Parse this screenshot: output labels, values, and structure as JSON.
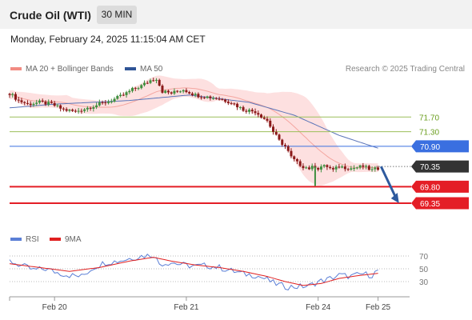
{
  "header": {
    "title": "Crude Oil (WTI)",
    "timeframe": "30 MIN"
  },
  "timestamp": "Monday, February 24, 2025 11:15:04 AM CET",
  "legend_main": [
    {
      "label": "MA 20 + Bollinger Bands",
      "color": "#f28b82"
    },
    {
      "label": "MA 50",
      "color": "#2f5496"
    }
  ],
  "legend_rsi": [
    {
      "label": "RSI",
      "color": "#5b7fd6"
    },
    {
      "label": "9MA",
      "color": "#e02020"
    }
  ],
  "copyright": "Research © 2025 Trading Central",
  "colors": {
    "up": "#3f8f3f",
    "down": "#8b1a1a",
    "resistance": "#9bbf5a",
    "pivot": "#3a6fe0",
    "support": "#e41e26",
    "current": "#333333",
    "arrow": "#2e5a9e"
  },
  "chart_data": [
    {
      "type": "line",
      "series_type": "candlestick",
      "ylim": [
        69.0,
        72.6
      ],
      "xlim": [
        0,
        133
      ],
      "x_ticks": [
        {
          "x": 15,
          "label": "Feb 20"
        },
        {
          "x": 59,
          "label": "Feb 21"
        },
        {
          "x": 103,
          "label": "Feb 24"
        },
        {
          "x": 123,
          "label": "Feb 25"
        }
      ],
      "levels": [
        {
          "value": 71.7,
          "label": "71.70",
          "kind": "resistance"
        },
        {
          "value": 71.3,
          "label": "71.30",
          "kind": "resistance"
        },
        {
          "value": 70.9,
          "label": "70.90",
          "kind": "pivot"
        },
        {
          "value": 70.35,
          "label": "70.35",
          "kind": "current"
        },
        {
          "value": 69.8,
          "label": "69.80",
          "kind": "support"
        },
        {
          "value": 69.35,
          "label": "69.35",
          "kind": "support"
        }
      ],
      "close_anchors": [
        [
          0,
          72.35
        ],
        [
          3,
          72.15
        ],
        [
          6,
          72.05
        ],
        [
          10,
          72.1
        ],
        [
          14,
          72.05
        ],
        [
          18,
          71.9
        ],
        [
          22,
          71.85
        ],
        [
          26,
          71.95
        ],
        [
          30,
          72.05
        ],
        [
          34,
          72.15
        ],
        [
          38,
          72.3
        ],
        [
          41,
          72.45
        ],
        [
          44,
          72.55
        ],
        [
          47,
          72.7
        ],
        [
          49,
          72.75
        ],
        [
          51,
          72.4
        ],
        [
          54,
          72.35
        ],
        [
          58,
          72.45
        ],
        [
          62,
          72.3
        ],
        [
          66,
          72.25
        ],
        [
          70,
          72.2
        ],
        [
          74,
          72.1
        ],
        [
          78,
          71.9
        ],
        [
          82,
          71.85
        ],
        [
          86,
          71.6
        ],
        [
          88,
          71.3
        ],
        [
          90,
          71.05
        ],
        [
          92,
          70.9
        ],
        [
          94,
          70.6
        ],
        [
          96,
          70.45
        ],
        [
          98,
          70.35
        ],
        [
          100,
          70.3
        ],
        [
          102,
          70.35
        ],
        [
          103,
          70.3
        ],
        [
          104,
          70.35
        ],
        [
          106,
          70.35
        ],
        [
          108,
          70.25
        ],
        [
          110,
          70.35
        ],
        [
          114,
          70.3
        ],
        [
          118,
          70.35
        ],
        [
          121,
          70.25
        ],
        [
          123,
          70.3
        ]
      ],
      "ma50_anchors": [
        [
          0,
          71.95
        ],
        [
          15,
          72.05
        ],
        [
          40,
          72.15
        ],
        [
          60,
          72.3
        ],
        [
          80,
          72.1
        ],
        [
          95,
          71.75
        ],
        [
          110,
          71.2
        ],
        [
          123,
          70.85
        ]
      ],
      "forecast": {
        "from": [
          124,
          70.35
        ],
        "to": [
          130,
          69.35
        ]
      }
    },
    {
      "type": "line",
      "title": "RSI",
      "ylim": [
        10,
        80
      ],
      "y_ticks": [
        70,
        50,
        30
      ],
      "rsi_anchors": [
        [
          0,
          62
        ],
        [
          4,
          55
        ],
        [
          8,
          48
        ],
        [
          12,
          50
        ],
        [
          16,
          44
        ],
        [
          20,
          40
        ],
        [
          24,
          38
        ],
        [
          28,
          52
        ],
        [
          32,
          60
        ],
        [
          36,
          62
        ],
        [
          40,
          66
        ],
        [
          44,
          70
        ],
        [
          48,
          72
        ],
        [
          50,
          58
        ],
        [
          54,
          60
        ],
        [
          58,
          56
        ],
        [
          62,
          54
        ],
        [
          66,
          55
        ],
        [
          70,
          52
        ],
        [
          74,
          47
        ],
        [
          78,
          42
        ],
        [
          82,
          40
        ],
        [
          86,
          33
        ],
        [
          88,
          28
        ],
        [
          92,
          22
        ],
        [
          96,
          22
        ],
        [
          100,
          23
        ],
        [
          103,
          30
        ],
        [
          106,
          33
        ],
        [
          110,
          40
        ],
        [
          114,
          38
        ],
        [
          118,
          42
        ],
        [
          121,
          40
        ],
        [
          123,
          48
        ]
      ],
      "ma9_anchors": [
        [
          0,
          58
        ],
        [
          10,
          52
        ],
        [
          20,
          46
        ],
        [
          30,
          52
        ],
        [
          40,
          62
        ],
        [
          48,
          68
        ],
        [
          54,
          62
        ],
        [
          62,
          56
        ],
        [
          70,
          52
        ],
        [
          78,
          46
        ],
        [
          86,
          38
        ],
        [
          92,
          30
        ],
        [
          98,
          24
        ],
        [
          104,
          27
        ],
        [
          110,
          35
        ],
        [
          116,
          39
        ],
        [
          123,
          43
        ]
      ]
    }
  ]
}
